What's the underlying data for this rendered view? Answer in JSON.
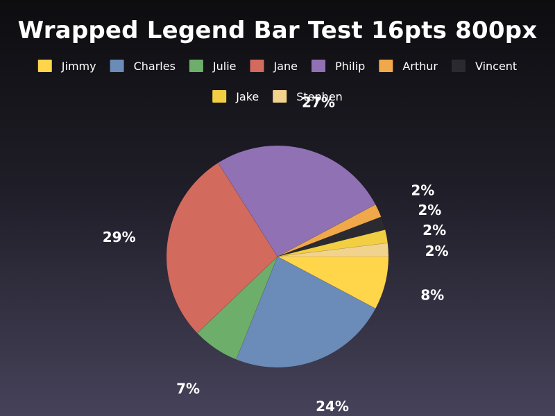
{
  "chart_data": {
    "type": "pie",
    "title": "Wrapped Legend Bar Test 16pts 800px",
    "legend": {
      "position": "top",
      "wrapped": true
    },
    "series": [
      {
        "name": "Jimmy",
        "value": 8,
        "label": "8%",
        "color": "#FFD54A"
      },
      {
        "name": "Charles",
        "value": 24,
        "label": "24%",
        "color": "#6B8BB8"
      },
      {
        "name": "Julie",
        "value": 7,
        "label": "7%",
        "color": "#6DAE6B"
      },
      {
        "name": "Jane",
        "value": 29,
        "label": "29%",
        "color": "#D36A5E"
      },
      {
        "name": "Philip",
        "value": 27,
        "label": "27%",
        "color": "#8F71B4"
      },
      {
        "name": "Arthur",
        "value": 2,
        "label": "2%",
        "color": "#F0A84A"
      },
      {
        "name": "Vincent",
        "value": 2,
        "label": "2%",
        "color": "#2B2A31"
      },
      {
        "name": "Jake",
        "value": 2,
        "label": "2%",
        "color": "#F2CE43"
      },
      {
        "name": "Stephen",
        "value": 2,
        "label": "2%",
        "color": "#F2D38D"
      }
    ]
  }
}
